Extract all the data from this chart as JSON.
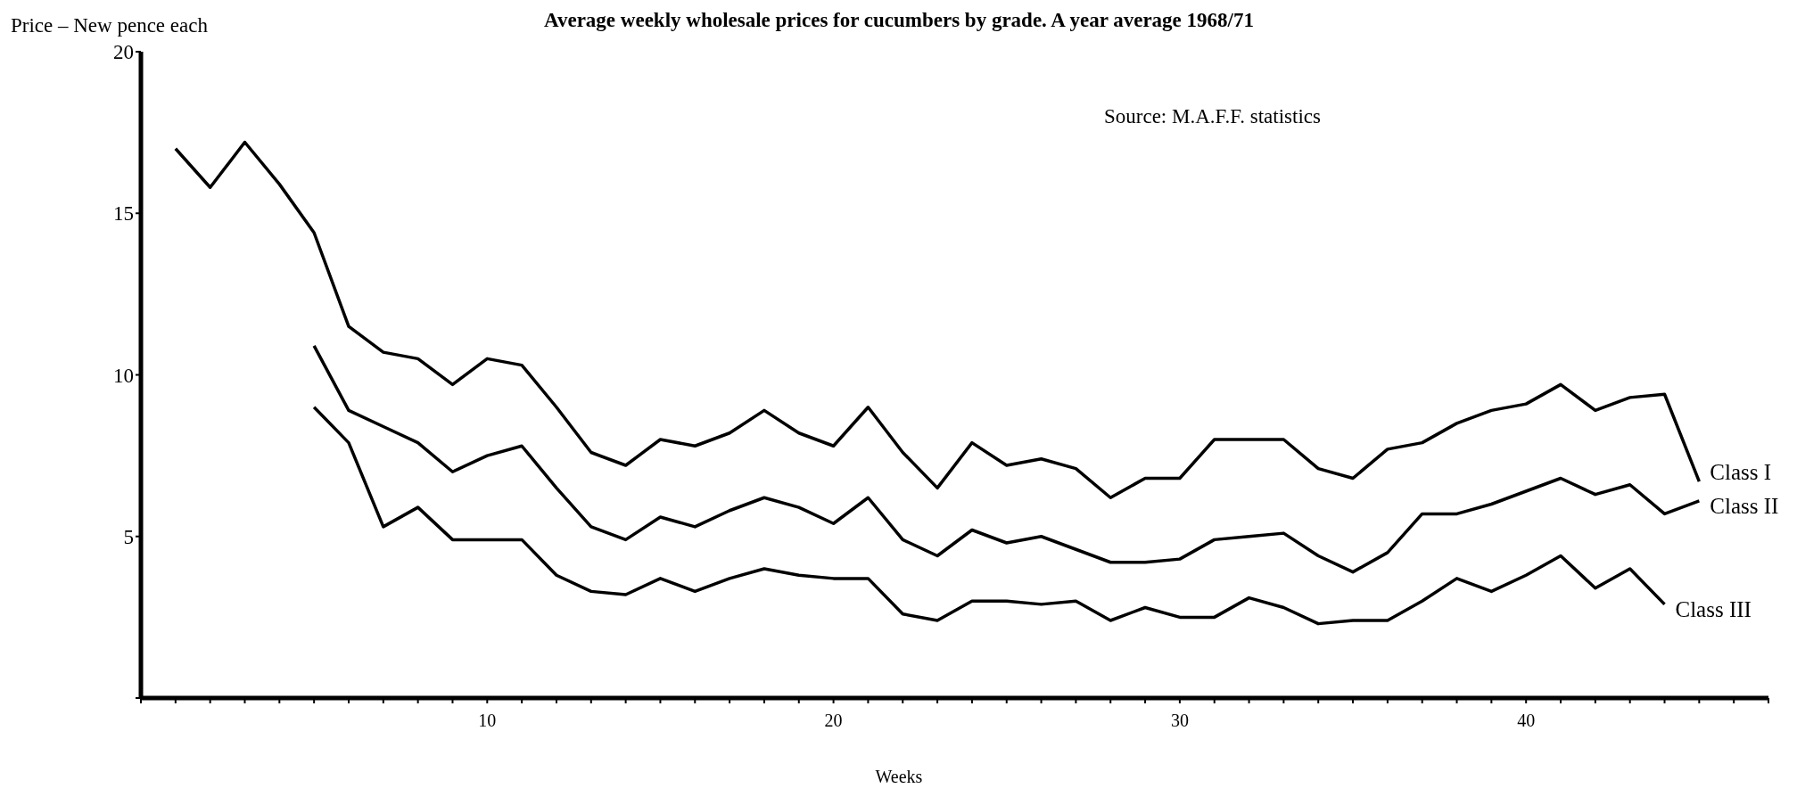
{
  "chart_data": {
    "type": "line",
    "title": "Average weekly wholesale prices for cucumbers by grade. A year average 1968/71",
    "xlabel": "Weeks",
    "ylabel": "Price – New pence each",
    "annotations": [
      "Source: M.A.F.F. statistics"
    ],
    "x": [
      1,
      2,
      3,
      4,
      5,
      6,
      7,
      8,
      9,
      10,
      11,
      12,
      13,
      14,
      15,
      16,
      17,
      18,
      19,
      20,
      21,
      22,
      23,
      24,
      25,
      26,
      27,
      28,
      29,
      30,
      31,
      32,
      33,
      34,
      35,
      36,
      37,
      38,
      39,
      40,
      41,
      42,
      43,
      44,
      45
    ],
    "series": [
      {
        "name": "Class I",
        "color": "#000000",
        "values": [
          17.0,
          15.8,
          17.2,
          15.9,
          14.4,
          11.5,
          10.7,
          10.5,
          9.7,
          10.5,
          10.3,
          9.0,
          7.6,
          7.2,
          8.0,
          7.8,
          8.2,
          8.9,
          8.2,
          7.8,
          9.0,
          7.6,
          6.5,
          7.9,
          7.2,
          7.4,
          7.1,
          6.2,
          6.8,
          6.8,
          8.0,
          8.0,
          8.0,
          7.1,
          6.8,
          7.7,
          7.9,
          8.5,
          8.9,
          9.1,
          9.7,
          8.9,
          9.3,
          9.4,
          6.7
        ]
      },
      {
        "name": "Class II",
        "color": "#000000",
        "values": [
          null,
          null,
          null,
          null,
          10.9,
          8.9,
          8.4,
          7.9,
          7.0,
          7.5,
          7.8,
          6.5,
          5.3,
          4.9,
          5.6,
          5.3,
          5.8,
          6.2,
          5.9,
          5.4,
          6.2,
          4.9,
          4.4,
          5.2,
          4.8,
          5.0,
          4.6,
          4.2,
          4.2,
          4.3,
          4.9,
          5.0,
          5.1,
          4.4,
          3.9,
          4.5,
          5.7,
          5.7,
          6.0,
          6.4,
          6.8,
          6.3,
          6.6,
          5.7,
          6.1
        ]
      },
      {
        "name": "Class III",
        "color": "#000000",
        "values": [
          null,
          null,
          null,
          null,
          9.0,
          7.9,
          5.3,
          5.9,
          4.9,
          4.9,
          4.9,
          3.8,
          3.3,
          3.2,
          3.7,
          3.3,
          3.7,
          4.0,
          3.8,
          3.7,
          3.7,
          2.6,
          2.4,
          3.0,
          3.0,
          2.9,
          3.0,
          2.4,
          2.8,
          2.5,
          2.5,
          3.1,
          2.8,
          2.3,
          2.4,
          2.4,
          3.0,
          3.7,
          3.3,
          3.8,
          4.4,
          3.4,
          4.0,
          2.9,
          null
        ]
      }
    ],
    "xlim": [
      0,
      47
    ],
    "xticks": [
      {
        "value": 0,
        "label": null
      },
      {
        "value": 1,
        "label": null
      },
      {
        "value": 2,
        "label": null
      },
      {
        "value": 3,
        "label": null
      },
      {
        "value": 4,
        "label": null
      },
      {
        "value": 5,
        "label": null
      },
      {
        "value": 6,
        "label": null
      },
      {
        "value": 7,
        "label": null
      },
      {
        "value": 8,
        "label": null
      },
      {
        "value": 9,
        "label": null
      },
      10,
      {
        "value": 11,
        "label": null
      },
      {
        "value": 12,
        "label": null
      },
      {
        "value": 13,
        "label": null
      },
      {
        "value": 14,
        "label": null
      },
      {
        "value": 15,
        "label": null
      },
      {
        "value": 16,
        "label": null
      },
      {
        "value": 17,
        "label": null
      },
      {
        "value": 18,
        "label": null
      },
      {
        "value": 19,
        "label": null
      },
      20,
      {
        "value": 21,
        "label": null
      },
      {
        "value": 22,
        "label": null
      },
      {
        "value": 23,
        "label": null
      },
      {
        "value": 24,
        "label": null
      },
      {
        "value": 25,
        "label": null
      },
      {
        "value": 26,
        "label": null
      },
      {
        "value": 27,
        "label": null
      },
      {
        "value": 28,
        "label": null
      },
      {
        "value": 29,
        "label": null
      },
      30,
      {
        "value": 31,
        "label": null
      },
      {
        "value": 32,
        "label": null
      },
      {
        "value": 33,
        "label": null
      },
      {
        "value": 34,
        "label": null
      },
      {
        "value": 35,
        "label": null
      },
      {
        "value": 36,
        "label": null
      },
      {
        "value": 37,
        "label": null
      },
      {
        "value": 38,
        "label": null
      },
      {
        "value": 39,
        "label": null
      },
      40,
      {
        "value": 41,
        "label": null
      },
      {
        "value": 42,
        "label": null
      },
      {
        "value": 43,
        "label": null
      },
      {
        "value": 44,
        "label": null
      },
      {
        "value": 45,
        "label": null
      },
      {
        "value": 46,
        "label": null
      },
      {
        "value": 47,
        "label": null
      }
    ],
    "ylim": [
      0,
      20
    ],
    "yticks": [
      {
        "value": 0,
        "label": null
      },
      5,
      10,
      15,
      20
    ],
    "grid": false,
    "legend": false,
    "marker": "none",
    "line_style": "solid"
  }
}
